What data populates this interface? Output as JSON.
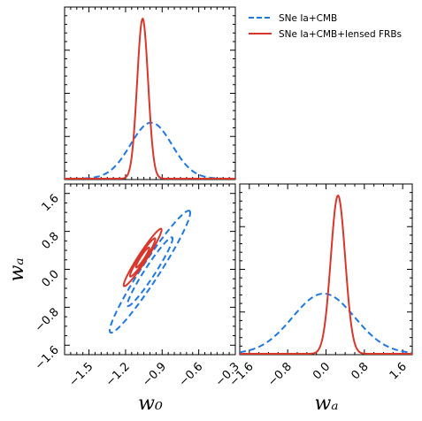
{
  "colors": {
    "blue": "#1f77e0",
    "red": "#d9362b"
  },
  "legend": {
    "blue_label": "SNe Ia+CMB",
    "red_label": "SNe Ia+CMB+lensed FRBs",
    "placement": "top-right"
  },
  "axes": {
    "w0_label": "w₀",
    "wa_label": "wₐ",
    "w0_ticks": [
      "−1.5",
      "−1.2",
      "−0.9",
      "−0.6",
      "−0.3"
    ],
    "wa_ticks": [
      "−1.6",
      "−0.8",
      "0.0",
      "0.8",
      "1.6"
    ]
  },
  "chart_data": [
    {
      "type": "line",
      "panel": "marginal-w0",
      "x_range": [
        -1.7,
        -0.3
      ],
      "series": [
        {
          "name": "SNe Ia+CMB",
          "style": "dashed",
          "mean": -0.99,
          "sigma": 0.17,
          "peak": 0.35
        },
        {
          "name": "SNe Ia+CMB+lensed FRBs",
          "style": "solid",
          "mean": -1.06,
          "sigma": 0.045,
          "peak": 1.0
        }
      ]
    },
    {
      "type": "line",
      "panel": "marginal-wa",
      "x_range": [
        -1.8,
        1.8
      ],
      "series": [
        {
          "name": "SNe Ia+CMB",
          "style": "dashed",
          "mean": -0.05,
          "sigma": 0.65,
          "peak": 0.38
        },
        {
          "name": "SNe Ia+CMB+lensed FRBs",
          "style": "solid",
          "mean": 0.25,
          "sigma": 0.15,
          "peak": 1.0
        }
      ]
    },
    {
      "type": "scatter",
      "panel": "joint-w0-wa",
      "x_range": [
        -1.7,
        -0.3
      ],
      "y_range": [
        -1.8,
        1.8
      ],
      "series": [
        {
          "name": "SNe Ia+CMB",
          "style": "dashed",
          "contours": [
            {
              "level": "1-sigma",
              "center": [
                -1.0,
                -0.05
              ],
              "semi_axes": [
                0.86,
                0.11
              ],
              "angle_deg": -57
            },
            {
              "level": "2-sigma",
              "center": [
                -1.0,
                -0.05
              ],
              "semi_axes": [
                1.53,
                0.19
              ],
              "angle_deg": -57
            }
          ]
        },
        {
          "name": "SNe Ia+CMB+lensed FRBs",
          "style": "solid",
          "contours": [
            {
              "level": "1-sigma",
              "center": [
                -1.06,
                0.25
              ],
              "semi_axes": [
                0.25,
                0.04
              ],
              "angle_deg": -57
            },
            {
              "level": "2-sigma",
              "center": [
                -1.06,
                0.25
              ],
              "semi_axes": [
                0.48,
                0.065
              ],
              "angle_deg": -57
            },
            {
              "level": "3-sigma",
              "center": [
                -1.06,
                0.25
              ],
              "semi_axes": [
                0.72,
                0.09
              ],
              "angle_deg": -57
            }
          ]
        }
      ]
    }
  ]
}
